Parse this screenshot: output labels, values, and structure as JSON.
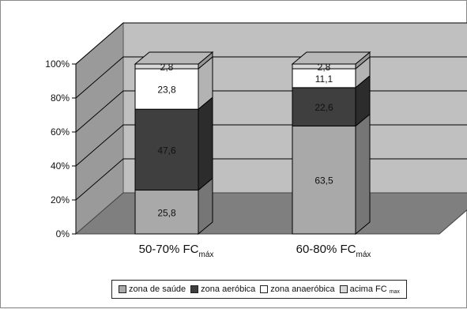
{
  "chart_data": {
    "type": "bar",
    "stacked": true,
    "three_d": true,
    "categories": [
      {
        "main": "50-70% FC",
        "sub": "máx"
      },
      {
        "main": "60-80% FC",
        "sub": "máx"
      }
    ],
    "y_ticks": [
      "0%",
      "20%",
      "40%",
      "60%",
      "80%",
      "100%"
    ],
    "ylim": [
      0,
      100
    ],
    "grid": true,
    "legend_position": "bottom",
    "series": [
      {
        "name": "zona de saúde",
        "name_sub": "",
        "values": [
          25.8,
          63.5
        ],
        "labels": [
          "25,8",
          "63,5"
        ],
        "color": "#a9a9a9"
      },
      {
        "name": "zona aeróbica",
        "name_sub": "",
        "values": [
          47.6,
          22.6
        ],
        "labels": [
          "47,6",
          "22,6"
        ],
        "color": "#3f3f3f"
      },
      {
        "name": "zona anaeróbica",
        "name_sub": "",
        "values": [
          23.8,
          11.1
        ],
        "labels": [
          "23,8",
          "11,1"
        ],
        "color": "#ffffff"
      },
      {
        "name": "acima FC",
        "name_sub": "max",
        "values": [
          2.8,
          2.8
        ],
        "labels": [
          "2,8",
          "2,8"
        ],
        "color": "#d8d8d8"
      }
    ],
    "colors": {
      "back_wall": "#c0c0c0",
      "floor": "#7f7f7f",
      "side_wall": "#9a9a9a",
      "gridline": "#000000"
    }
  }
}
